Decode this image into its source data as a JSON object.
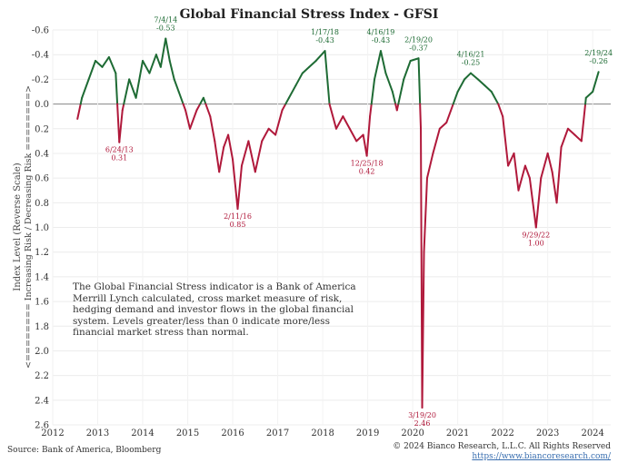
{
  "chart_data": {
    "type": "line",
    "title": "Global Financial Stress Index - GFSI",
    "ylabel": "Index Level (Reverse Scale)",
    "ylabel2": "<======== Increasing Risk / Decreasing Risk ========>",
    "ylim": [
      2.6,
      -0.6
    ],
    "y_reversed": true,
    "y_ticks": [
      "-0.6",
      "-0.4",
      "-0.2",
      "0.0",
      "0.2",
      "0.4",
      "0.6",
      "0.8",
      "1.0",
      "1.2",
      "1.4",
      "1.6",
      "1.8",
      "2.0",
      "2.2",
      "2.4",
      "2.6"
    ],
    "x_ticks": [
      "2012",
      "2013",
      "2014",
      "2015",
      "2016",
      "2017",
      "2018",
      "2019",
      "2020",
      "2021",
      "2022",
      "2023",
      "2024"
    ],
    "x_range": [
      2012.0,
      2024.4
    ],
    "colors": {
      "below_zero": "#1e6b34",
      "above_zero": "#b0193b"
    },
    "series": [
      {
        "points": [
          [
            2012.55,
            0.12
          ],
          [
            2012.65,
            -0.05
          ],
          [
            2012.8,
            -0.2
          ],
          [
            2012.95,
            -0.35
          ],
          [
            2013.1,
            -0.3
          ],
          [
            2013.25,
            -0.38
          ],
          [
            2013.4,
            -0.25
          ],
          [
            2013.48,
            0.31
          ],
          [
            2013.55,
            0.05
          ],
          [
            2013.7,
            -0.2
          ],
          [
            2013.85,
            -0.05
          ],
          [
            2014.0,
            -0.35
          ],
          [
            2014.15,
            -0.25
          ],
          [
            2014.3,
            -0.4
          ],
          [
            2014.4,
            -0.3
          ],
          [
            2014.51,
            -0.53
          ],
          [
            2014.6,
            -0.35
          ],
          [
            2014.7,
            -0.2
          ],
          [
            2014.8,
            -0.1
          ],
          [
            2014.95,
            0.05
          ],
          [
            2015.05,
            0.2
          ],
          [
            2015.2,
            0.05
          ],
          [
            2015.35,
            -0.05
          ],
          [
            2015.5,
            0.1
          ],
          [
            2015.6,
            0.3
          ],
          [
            2015.7,
            0.55
          ],
          [
            2015.8,
            0.35
          ],
          [
            2015.9,
            0.25
          ],
          [
            2016.0,
            0.45
          ],
          [
            2016.11,
            0.85
          ],
          [
            2016.2,
            0.5
          ],
          [
            2016.35,
            0.3
          ],
          [
            2016.5,
            0.55
          ],
          [
            2016.65,
            0.3
          ],
          [
            2016.8,
            0.2
          ],
          [
            2016.95,
            0.25
          ],
          [
            2017.1,
            0.05
          ],
          [
            2017.25,
            -0.05
          ],
          [
            2017.4,
            -0.15
          ],
          [
            2017.55,
            -0.25
          ],
          [
            2017.7,
            -0.3
          ],
          [
            2017.85,
            -0.35
          ],
          [
            2018.05,
            -0.43
          ],
          [
            2018.15,
            0.0
          ],
          [
            2018.3,
            0.2
          ],
          [
            2018.45,
            0.1
          ],
          [
            2018.6,
            0.2
          ],
          [
            2018.75,
            0.3
          ],
          [
            2018.9,
            0.25
          ],
          [
            2018.98,
            0.42
          ],
          [
            2019.05,
            0.1
          ],
          [
            2019.15,
            -0.2
          ],
          [
            2019.29,
            -0.43
          ],
          [
            2019.4,
            -0.25
          ],
          [
            2019.55,
            -0.1
          ],
          [
            2019.65,
            0.05
          ],
          [
            2019.8,
            -0.2
          ],
          [
            2019.95,
            -0.35
          ],
          [
            2020.13,
            -0.37
          ],
          [
            2020.18,
            0.2
          ],
          [
            2020.21,
            2.46
          ],
          [
            2020.25,
            1.2
          ],
          [
            2020.32,
            0.6
          ],
          [
            2020.45,
            0.4
          ],
          [
            2020.6,
            0.2
          ],
          [
            2020.75,
            0.15
          ],
          [
            2020.9,
            0.0
          ],
          [
            2021.0,
            -0.1
          ],
          [
            2021.15,
            -0.2
          ],
          [
            2021.29,
            -0.25
          ],
          [
            2021.45,
            -0.2
          ],
          [
            2021.6,
            -0.15
          ],
          [
            2021.75,
            -0.1
          ],
          [
            2021.9,
            0.0
          ],
          [
            2022.0,
            0.1
          ],
          [
            2022.12,
            0.5
          ],
          [
            2022.25,
            0.4
          ],
          [
            2022.35,
            0.7
          ],
          [
            2022.5,
            0.5
          ],
          [
            2022.6,
            0.6
          ],
          [
            2022.74,
            1.0
          ],
          [
            2022.85,
            0.6
          ],
          [
            2023.0,
            0.4
          ],
          [
            2023.1,
            0.55
          ],
          [
            2023.2,
            0.8
          ],
          [
            2023.3,
            0.35
          ],
          [
            2023.45,
            0.2
          ],
          [
            2023.6,
            0.25
          ],
          [
            2023.75,
            0.3
          ],
          [
            2023.85,
            -0.05
          ],
          [
            2024.0,
            -0.1
          ],
          [
            2024.13,
            -0.26
          ]
        ]
      }
    ],
    "annotations": [
      {
        "date": "6/24/13",
        "value": "0.31",
        "x": 2013.48,
        "y": 0.31,
        "color": "red",
        "pos": "below"
      },
      {
        "date": "7/4/14",
        "value": "-0.53",
        "x": 2014.51,
        "y": -0.53,
        "color": "green",
        "pos": "above"
      },
      {
        "date": "2/11/16",
        "value": "0.85",
        "x": 2016.11,
        "y": 0.85,
        "color": "red",
        "pos": "below"
      },
      {
        "date": "1/17/18",
        "value": "-0.43",
        "x": 2018.05,
        "y": -0.43,
        "color": "green",
        "pos": "above"
      },
      {
        "date": "12/25/18",
        "value": "0.42",
        "x": 2018.98,
        "y": 0.42,
        "color": "red",
        "pos": "below"
      },
      {
        "date": "4/16/19",
        "value": "-0.43",
        "x": 2019.29,
        "y": -0.43,
        "color": "green",
        "pos": "above"
      },
      {
        "date": "2/19/20",
        "value": "-0.37",
        "x": 2020.13,
        "y": -0.37,
        "color": "green",
        "pos": "above"
      },
      {
        "date": "3/19/20",
        "value": "2.46",
        "x": 2020.21,
        "y": 2.46,
        "color": "red",
        "pos": "below"
      },
      {
        "date": "4/16/21",
        "value": "-0.25",
        "x": 2021.29,
        "y": -0.25,
        "color": "green",
        "pos": "above"
      },
      {
        "date": "9/29/22",
        "value": "1.00",
        "x": 2022.74,
        "y": 1.0,
        "color": "red",
        "pos": "below"
      },
      {
        "date": "2/19/24",
        "value": "-0.26",
        "x": 2024.13,
        "y": -0.26,
        "color": "green",
        "pos": "above"
      }
    ],
    "grid": true
  },
  "note": "The Global Financial Stress indicator is a Bank of America Merrill Lynch calculated, cross market measure of risk, hedging demand and investor flows in the global financial system. Levels greater/less than 0 indicate more/less financial market stress than normal.",
  "source": "Source: Bank of America, Bloomberg",
  "copyright": "© 2024 Bianco Research, L.L.C. All Rights Reserved",
  "url": "https://www.biancoresearch.com/"
}
